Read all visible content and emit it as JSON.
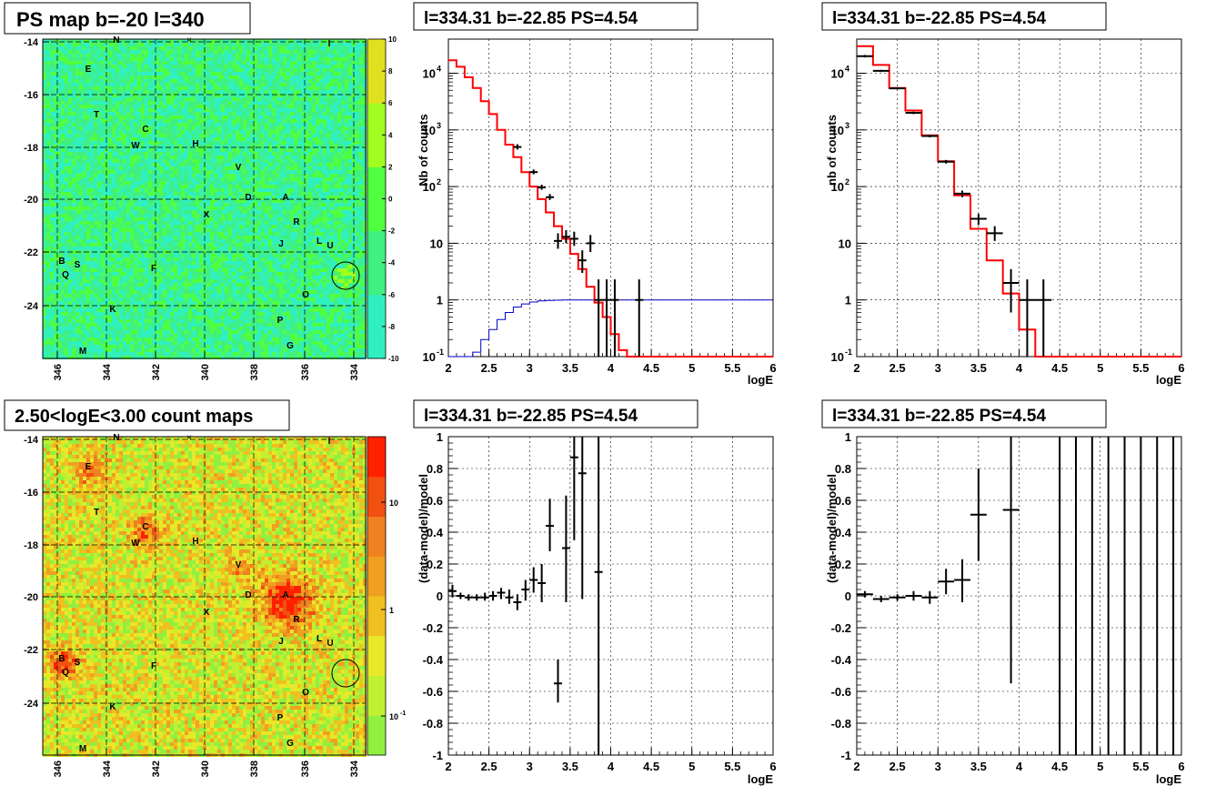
{
  "colors": {
    "model": "#ff0000",
    "blue": "#0000cc",
    "data": "#000000"
  },
  "panels": {
    "psmap": {
      "title": "PS map b=-20 l=340",
      "type": "heatmap",
      "yticks": [
        "-14",
        "-16",
        "-18",
        "-20",
        "-22",
        "-24"
      ],
      "xticks": [
        "346",
        "344",
        "342",
        "340",
        "338",
        "336",
        "334"
      ],
      "zticks": [
        "10",
        "8",
        "6",
        "4",
        "2",
        "0",
        "-2",
        "-4",
        "-6",
        "-8",
        "-10"
      ],
      "zscale": "linear",
      "base_color": "#33e633"
    },
    "countmap": {
      "title": "2.50<logE<3.00 count maps",
      "type": "heatmap",
      "yticks": [
        "-14",
        "-16",
        "-18",
        "-20",
        "-22",
        "-24"
      ],
      "xticks": [
        "346",
        "344",
        "342",
        "340",
        "338",
        "336",
        "334"
      ],
      "zticks": [
        "10",
        "1",
        "10"
      ],
      "zticks_sup": [
        "",
        "",
        "-1"
      ],
      "zscale": "log",
      "base_color": "#e6d633"
    },
    "spec1": {
      "title": "l=334.31 b=-22.85 PS=4.54",
      "ylabel": "Nb of counts",
      "xlabel": "logE"
    },
    "spec2": {
      "title": "l=334.31 b=-22.85 PS=4.54",
      "ylabel": "nb of counts",
      "xlabel": "logE"
    },
    "res1": {
      "title": "l=334.31 b=-22.85 PS=4.54",
      "ylabel": "(data-model)/model",
      "xlabel": "logE"
    },
    "res2": {
      "title": "l=334.31 b=-22.85 PS=4.54",
      "ylabel": "(data-model)/model",
      "xlabel": "logE"
    }
  },
  "source_labels": [
    "N",
    "I",
    "E",
    "T",
    "C",
    "W",
    "H",
    "V",
    "D",
    "A",
    "X",
    "R",
    "J",
    "L",
    "U",
    "B",
    "S",
    "Q",
    "F",
    "O",
    "K",
    "P",
    "M",
    "G"
  ],
  "chart_data": [
    {
      "type": "line",
      "name": "spec1",
      "xlim": [
        2,
        6
      ],
      "ylim": [
        0.1,
        40000
      ],
      "log_y": true,
      "grid": true,
      "xticks": [
        "2",
        "2.5",
        "3",
        "3.5",
        "4",
        "4.5",
        "5",
        "5.5",
        "6"
      ],
      "yticks": [
        "10^-1",
        "1",
        "10",
        "10^2",
        "10^3",
        "10^4"
      ],
      "model_step": {
        "edges": [
          2.0,
          2.1,
          2.2,
          2.3,
          2.4,
          2.5,
          2.6,
          2.7,
          2.8,
          2.9,
          3.0,
          3.1,
          3.2,
          3.3,
          3.4,
          3.5,
          3.6,
          3.7,
          3.8,
          3.9,
          4.0,
          4.1,
          4.2,
          4.3,
          4.4,
          4.5,
          6.0
        ],
        "values": [
          17000,
          13000,
          8500,
          5500,
          3200,
          1900,
          1000,
          550,
          330,
          180,
          100,
          60,
          35,
          20,
          12,
          6.5,
          3.5,
          1.7,
          0.9,
          0.5,
          0.25,
          0.13,
          0.1,
          0.1,
          0.1,
          0.1
        ]
      },
      "blue_step": {
        "edges": [
          2.0,
          2.1,
          2.2,
          2.3,
          2.4,
          2.5,
          2.6,
          2.7,
          2.8,
          2.9,
          3.0,
          3.1,
          3.2,
          3.3,
          3.4,
          3.5,
          6.0
        ],
        "values": [
          0.1,
          0.1,
          0.1,
          0.12,
          0.2,
          0.3,
          0.45,
          0.6,
          0.75,
          0.85,
          0.92,
          0.96,
          0.98,
          0.99,
          1.0,
          1.0
        ]
      },
      "points": [
        {
          "x": 2.85,
          "y": 500,
          "xe": 0.05,
          "ylo": 450,
          "yhi": 560
        },
        {
          "x": 3.05,
          "y": 180,
          "xe": 0.05,
          "ylo": 165,
          "yhi": 200
        },
        {
          "x": 3.15,
          "y": 97,
          "xe": 0.05,
          "ylo": 88,
          "yhi": 108
        },
        {
          "x": 3.25,
          "y": 65,
          "xe": 0.05,
          "ylo": 58,
          "yhi": 74
        },
        {
          "x": 3.35,
          "y": 11,
          "xe": 0.05,
          "ylo": 8,
          "yhi": 15
        },
        {
          "x": 3.45,
          "y": 13,
          "xe": 0.05,
          "ylo": 10,
          "yhi": 17
        },
        {
          "x": 3.55,
          "y": 12,
          "xe": 0.05,
          "ylo": 9,
          "yhi": 16
        },
        {
          "x": 3.65,
          "y": 5,
          "xe": 0.05,
          "ylo": 3,
          "yhi": 7.5
        },
        {
          "x": 3.75,
          "y": 10,
          "xe": 0.05,
          "ylo": 7,
          "yhi": 14
        },
        {
          "x": 3.85,
          "y": 1,
          "xe": 0.05,
          "ylo": 0.1,
          "yhi": 2.3
        },
        {
          "x": 3.95,
          "y": 1,
          "xe": 0.05,
          "ylo": 0.1,
          "yhi": 2.3
        },
        {
          "x": 4.05,
          "y": 1,
          "xe": 0.05,
          "ylo": 0.1,
          "yhi": 2.3
        },
        {
          "x": 4.35,
          "y": 1,
          "xe": 0.05,
          "ylo": 0.1,
          "yhi": 2.3
        }
      ]
    },
    {
      "type": "line",
      "name": "spec2",
      "xlim": [
        2,
        6
      ],
      "ylim": [
        0.1,
        40000
      ],
      "log_y": true,
      "grid": true,
      "xticks": [
        "2",
        "2.5",
        "3",
        "3.5",
        "4",
        "4.5",
        "5",
        "5.5",
        "6"
      ],
      "yticks": [
        "10^-1",
        "1",
        "10",
        "10^2",
        "10^3",
        "10^4"
      ],
      "model_step": {
        "edges": [
          2.0,
          2.2,
          2.4,
          2.6,
          2.8,
          3.0,
          3.2,
          3.4,
          3.6,
          3.8,
          4.0,
          4.2,
          4.4,
          6.0
        ],
        "values": [
          30000,
          14000,
          5500,
          2200,
          800,
          280,
          70,
          18,
          5,
          1.3,
          0.3,
          0.1,
          0.1
        ]
      },
      "points": [
        {
          "x": 2.1,
          "y": 20000,
          "xe": 0.1,
          "ylo": 19000,
          "yhi": 21000
        },
        {
          "x": 2.3,
          "y": 11000,
          "xe": 0.1,
          "ylo": 10500,
          "yhi": 11500
        },
        {
          "x": 2.5,
          "y": 5400,
          "xe": 0.1,
          "ylo": 5200,
          "yhi": 5600
        },
        {
          "x": 2.7,
          "y": 2000,
          "xe": 0.1,
          "ylo": 1900,
          "yhi": 2100
        },
        {
          "x": 2.9,
          "y": 780,
          "xe": 0.1,
          "ylo": 740,
          "yhi": 820
        },
        {
          "x": 3.1,
          "y": 275,
          "xe": 0.1,
          "ylo": 255,
          "yhi": 295
        },
        {
          "x": 3.3,
          "y": 75,
          "xe": 0.1,
          "ylo": 65,
          "yhi": 85
        },
        {
          "x": 3.5,
          "y": 27,
          "xe": 0.1,
          "ylo": 21,
          "yhi": 33
        },
        {
          "x": 3.7,
          "y": 15,
          "xe": 0.1,
          "ylo": 11,
          "yhi": 20
        },
        {
          "x": 3.9,
          "y": 2,
          "xe": 0.1,
          "ylo": 0.6,
          "yhi": 3.5
        },
        {
          "x": 4.1,
          "y": 1,
          "xe": 0.1,
          "ylo": 0.1,
          "yhi": 2.3
        },
        {
          "x": 4.3,
          "y": 1,
          "xe": 0.1,
          "ylo": 0.1,
          "yhi": 2.3
        }
      ]
    },
    {
      "type": "scatter",
      "name": "res1",
      "xlim": [
        2,
        6
      ],
      "ylim": [
        -1,
        1
      ],
      "grid": true,
      "xticks": [
        "2",
        "2.5",
        "3",
        "3.5",
        "4",
        "4.5",
        "5",
        "5.5",
        "6"
      ],
      "yticks": [
        "-1",
        "-0.8",
        "-0.6",
        "-0.4",
        "-0.2",
        "0",
        "0.2",
        "0.4",
        "0.6",
        "0.8",
        "1"
      ],
      "points": [
        {
          "x": 2.05,
          "y": 0.03,
          "xe": 0.05,
          "ylo": -0.01,
          "yhi": 0.07
        },
        {
          "x": 2.15,
          "y": 0.0,
          "xe": 0.05,
          "ylo": -0.02,
          "yhi": 0.02
        },
        {
          "x": 2.25,
          "y": -0.01,
          "xe": 0.05,
          "ylo": -0.03,
          "yhi": 0.01
        },
        {
          "x": 2.35,
          "y": -0.01,
          "xe": 0.05,
          "ylo": -0.03,
          "yhi": 0.01
        },
        {
          "x": 2.45,
          "y": -0.01,
          "xe": 0.05,
          "ylo": -0.03,
          "yhi": 0.02
        },
        {
          "x": 2.55,
          "y": 0.0,
          "xe": 0.05,
          "ylo": -0.03,
          "yhi": 0.03
        },
        {
          "x": 2.65,
          "y": 0.02,
          "xe": 0.05,
          "ylo": -0.02,
          "yhi": 0.05
        },
        {
          "x": 2.75,
          "y": -0.01,
          "xe": 0.05,
          "ylo": -0.05,
          "yhi": 0.04
        },
        {
          "x": 2.85,
          "y": -0.04,
          "xe": 0.05,
          "ylo": -0.09,
          "yhi": 0.01
        },
        {
          "x": 2.95,
          "y": 0.04,
          "xe": 0.05,
          "ylo": -0.03,
          "yhi": 0.1
        },
        {
          "x": 3.05,
          "y": 0.1,
          "xe": 0.05,
          "ylo": 0.02,
          "yhi": 0.18
        },
        {
          "x": 3.15,
          "y": 0.08,
          "xe": 0.05,
          "ylo": -0.04,
          "yhi": 0.2
        },
        {
          "x": 3.25,
          "y": 0.44,
          "xe": 0.05,
          "ylo": 0.28,
          "yhi": 0.61
        },
        {
          "x": 3.35,
          "y": -0.55,
          "xe": 0.05,
          "ylo": -0.67,
          "yhi": -0.4
        },
        {
          "x": 3.45,
          "y": 0.3,
          "xe": 0.05,
          "ylo": -0.04,
          "yhi": 0.63
        },
        {
          "x": 3.55,
          "y": 0.87,
          "xe": 0.05,
          "ylo": 0.35,
          "yhi": 1.0
        },
        {
          "x": 3.65,
          "y": 0.77,
          "xe": 0.05,
          "ylo": -0.02,
          "yhi": 1.0
        },
        {
          "x": 3.85,
          "y": 0.15,
          "xe": 0.05,
          "ylo": -1.0,
          "yhi": 1.0
        }
      ]
    },
    {
      "type": "scatter",
      "name": "res2",
      "xlim": [
        2,
        6
      ],
      "ylim": [
        -1,
        1
      ],
      "grid": true,
      "xticks": [
        "2",
        "2.5",
        "3",
        "3.5",
        "4",
        "4.5",
        "5",
        "5.5",
        "6"
      ],
      "yticks": [
        "-1",
        "-0.8",
        "-0.6",
        "-0.4",
        "-0.2",
        "0",
        "0.2",
        "0.4",
        "0.6",
        "0.8",
        "1"
      ],
      "points": [
        {
          "x": 2.1,
          "y": 0.01,
          "xe": 0.1,
          "ylo": -0.01,
          "yhi": 0.03
        },
        {
          "x": 2.3,
          "y": -0.02,
          "xe": 0.1,
          "ylo": -0.04,
          "yhi": 0.0
        },
        {
          "x": 2.5,
          "y": -0.01,
          "xe": 0.1,
          "ylo": -0.03,
          "yhi": 0.01
        },
        {
          "x": 2.7,
          "y": 0.0,
          "xe": 0.1,
          "ylo": -0.03,
          "yhi": 0.03
        },
        {
          "x": 2.9,
          "y": -0.01,
          "xe": 0.1,
          "ylo": -0.05,
          "yhi": 0.03
        },
        {
          "x": 3.1,
          "y": 0.09,
          "xe": 0.1,
          "ylo": 0.01,
          "yhi": 0.17
        },
        {
          "x": 3.3,
          "y": 0.1,
          "xe": 0.1,
          "ylo": -0.04,
          "yhi": 0.23
        },
        {
          "x": 3.5,
          "y": 0.51,
          "xe": 0.1,
          "ylo": 0.22,
          "yhi": 0.8
        },
        {
          "x": 3.9,
          "y": 0.54,
          "xe": 0.1,
          "ylo": -0.55,
          "yhi": 1.0
        },
        {
          "x": 4.5,
          "y": 1.0,
          "xe": 0.0,
          "ylo": -1.0,
          "yhi": 1.0
        },
        {
          "x": 4.7,
          "y": 1.0,
          "xe": 0.0,
          "ylo": -1.0,
          "yhi": 1.0
        },
        {
          "x": 4.9,
          "y": 1.0,
          "xe": 0.0,
          "ylo": -1.0,
          "yhi": 1.0
        },
        {
          "x": 5.1,
          "y": 1.0,
          "xe": 0.0,
          "ylo": -1.0,
          "yhi": 1.0
        },
        {
          "x": 5.3,
          "y": 1.0,
          "xe": 0.0,
          "ylo": -1.0,
          "yhi": 1.0
        },
        {
          "x": 5.5,
          "y": 1.0,
          "xe": 0.0,
          "ylo": -1.0,
          "yhi": 1.0
        },
        {
          "x": 5.7,
          "y": 1.0,
          "xe": 0.0,
          "ylo": -1.0,
          "yhi": 1.0
        },
        {
          "x": 5.9,
          "y": 1.0,
          "xe": 0.0,
          "ylo": -1.0,
          "yhi": 1.0
        }
      ]
    }
  ]
}
